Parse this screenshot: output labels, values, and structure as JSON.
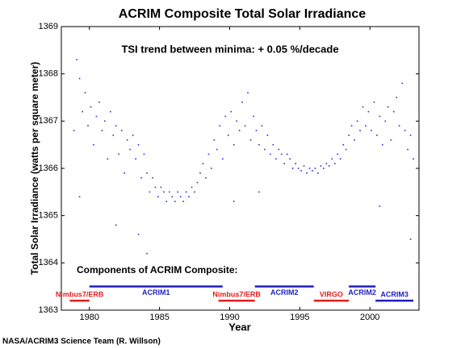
{
  "chart_data": {
    "type": "scatter",
    "title": "ACRIM Composite Total Solar Irradiance",
    "annotation": "TSI trend between minima: + 0.05 %/decade",
    "components_title": "Components of ACRIM Composite:",
    "xlabel": "Year",
    "ylabel": "Total Solar Irradiance (watts per square meter)",
    "footer": "NASA/ACRIM3 Science Team (R. Willson)",
    "color": "#2b2bd9",
    "xlim": [
      1978,
      2003.5
    ],
    "ylim": [
      1363,
      1369
    ],
    "xticks": [
      1980,
      1985,
      1990,
      1995,
      2000
    ],
    "yticks": [
      1363,
      1364,
      1365,
      1366,
      1367,
      1368,
      1369
    ],
    "x": [
      1978.9,
      1979.1,
      1979.3,
      1979.5,
      1979.7,
      1979.9,
      1980.1,
      1980.3,
      1980.5,
      1980.7,
      1980.9,
      1981.1,
      1981.3,
      1981.5,
      1981.7,
      1981.9,
      1982.1,
      1982.3,
      1982.5,
      1982.7,
      1982.9,
      1983.1,
      1983.3,
      1983.5,
      1983.7,
      1983.9,
      1984.1,
      1984.3,
      1984.5,
      1984.7,
      1984.9,
      1985.1,
      1985.3,
      1985.5,
      1985.7,
      1985.9,
      1986.1,
      1986.3,
      1986.5,
      1986.7,
      1986.9,
      1987.1,
      1987.3,
      1987.5,
      1987.7,
      1987.9,
      1988.1,
      1988.3,
      1988.5,
      1988.7,
      1988.9,
      1989.1,
      1989.3,
      1989.5,
      1989.7,
      1989.9,
      1990.1,
      1990.3,
      1990.5,
      1990.7,
      1990.9,
      1991.1,
      1991.3,
      1991.5,
      1991.7,
      1991.9,
      1992.1,
      1992.3,
      1992.5,
      1992.7,
      1992.9,
      1993.1,
      1993.3,
      1993.5,
      1993.7,
      1993.9,
      1994.1,
      1994.3,
      1994.5,
      1994.7,
      1994.9,
      1995.1,
      1995.3,
      1995.5,
      1995.7,
      1995.9,
      1996.1,
      1996.3,
      1996.5,
      1996.7,
      1996.9,
      1997.1,
      1997.3,
      1997.5,
      1997.7,
      1997.9,
      1998.1,
      1998.3,
      1998.5,
      1998.7,
      1998.9,
      1999.1,
      1999.3,
      1999.5,
      1999.7,
      1999.9,
      2000.1,
      2000.3,
      2000.5,
      2000.7,
      2000.9,
      2001.1,
      2001.3,
      2001.5,
      2001.7,
      2001.9,
      2002.1,
      2002.3,
      2002.5,
      2002.7,
      2002.9,
      2003.1,
      1979.3,
      1981.9,
      1983.5,
      1984.1,
      1990.3,
      1992.1,
      2000.7,
      2002.9
    ],
    "values": [
      1366.8,
      1368.3,
      1367.9,
      1367.2,
      1367.6,
      1366.9,
      1367.3,
      1366.5,
      1367.1,
      1367.4,
      1366.8,
      1367.0,
      1366.2,
      1367.2,
      1366.7,
      1366.9,
      1366.3,
      1366.8,
      1365.9,
      1366.6,
      1366.4,
      1366.7,
      1366.2,
      1366.5,
      1365.8,
      1366.3,
      1365.9,
      1365.5,
      1365.8,
      1365.6,
      1365.4,
      1365.6,
      1365.5,
      1365.3,
      1365.5,
      1365.4,
      1365.3,
      1365.5,
      1365.4,
      1365.3,
      1365.5,
      1365.4,
      1365.6,
      1365.5,
      1365.7,
      1365.9,
      1366.1,
      1365.8,
      1366.3,
      1366.0,
      1366.6,
      1366.4,
      1366.9,
      1366.2,
      1367.1,
      1366.7,
      1367.2,
      1366.5,
      1367.0,
      1366.8,
      1367.4,
      1366.9,
      1367.6,
      1366.6,
      1367.1,
      1366.8,
      1366.5,
      1366.9,
      1366.4,
      1366.7,
      1366.3,
      1366.5,
      1366.2,
      1366.4,
      1366.3,
      1366.1,
      1366.3,
      1366.2,
      1366.0,
      1366.1,
      1366.0,
      1365.95,
      1366.05,
      1365.9,
      1366.0,
      1365.95,
      1366.0,
      1365.9,
      1366.05,
      1366.0,
      1366.1,
      1366.05,
      1366.2,
      1366.1,
      1366.3,
      1366.2,
      1366.5,
      1366.4,
      1366.7,
      1366.9,
      1366.6,
      1367.0,
      1366.8,
      1367.3,
      1366.9,
      1367.2,
      1366.8,
      1367.4,
      1366.7,
      1367.1,
      1366.5,
      1367.0,
      1367.3,
      1366.6,
      1367.2,
      1367.5,
      1366.9,
      1367.8,
      1366.8,
      1366.4,
      1366.7,
      1366.2,
      1365.4,
      1364.8,
      1364.6,
      1364.2,
      1365.3,
      1365.5,
      1365.2,
      1364.5
    ],
    "components": [
      {
        "name": "Nimbus7/ERB",
        "color": "#e02020",
        "start": 1978.6,
        "end": 1980.0,
        "y": 1363.2
      },
      {
        "name": "ACRIM1",
        "color": "#1f1fc0",
        "start": 1980.0,
        "end": 1989.5,
        "y": 1363.5
      },
      {
        "name": "Nimbus7/ERB",
        "color": "#e02020",
        "start": 1989.2,
        "end": 1991.8,
        "y": 1363.2
      },
      {
        "name": "ACRIM2",
        "color": "#1f1fc0",
        "start": 1991.8,
        "end": 1996.0,
        "y": 1363.5
      },
      {
        "name": "VIRGO",
        "color": "#e02020",
        "start": 1996.0,
        "end": 1998.5,
        "y": 1363.2
      },
      {
        "name": "ACRIM2",
        "color": "#1f1fc0",
        "start": 1998.5,
        "end": 2000.4,
        "y": 1363.5
      },
      {
        "name": "ACRIM3",
        "color": "#1f1fc0",
        "start": 2000.4,
        "end": 2003.1,
        "y": 1363.2
      }
    ]
  }
}
